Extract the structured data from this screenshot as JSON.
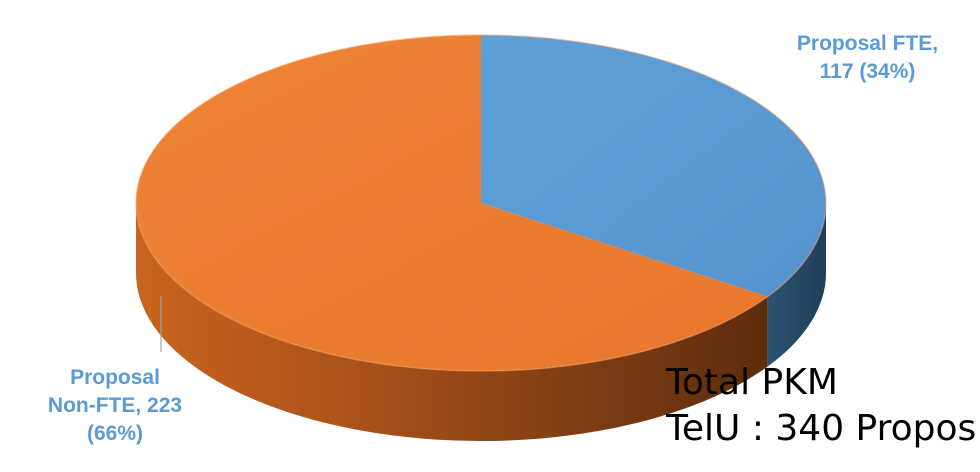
{
  "chart_data": {
    "type": "pie",
    "style": "3d",
    "slices": [
      {
        "name": "Proposal FTE",
        "label_lines": [
          "Proposal FTE,",
          "117 (34%)"
        ],
        "value": 117,
        "percent": 34,
        "color": "#5B9BD5"
      },
      {
        "name": "Proposal Non-FTE",
        "label_lines": [
          "Proposal",
          "Non-FTE, 223",
          "(66%)"
        ],
        "value": 223,
        "percent": 66,
        "color": "#ED7D31"
      }
    ],
    "label_color": "#5B9BD5",
    "legend": "none"
  },
  "annotation": {
    "lines": [
      "Total PKM",
      "TelU : 340 Propos"
    ]
  }
}
